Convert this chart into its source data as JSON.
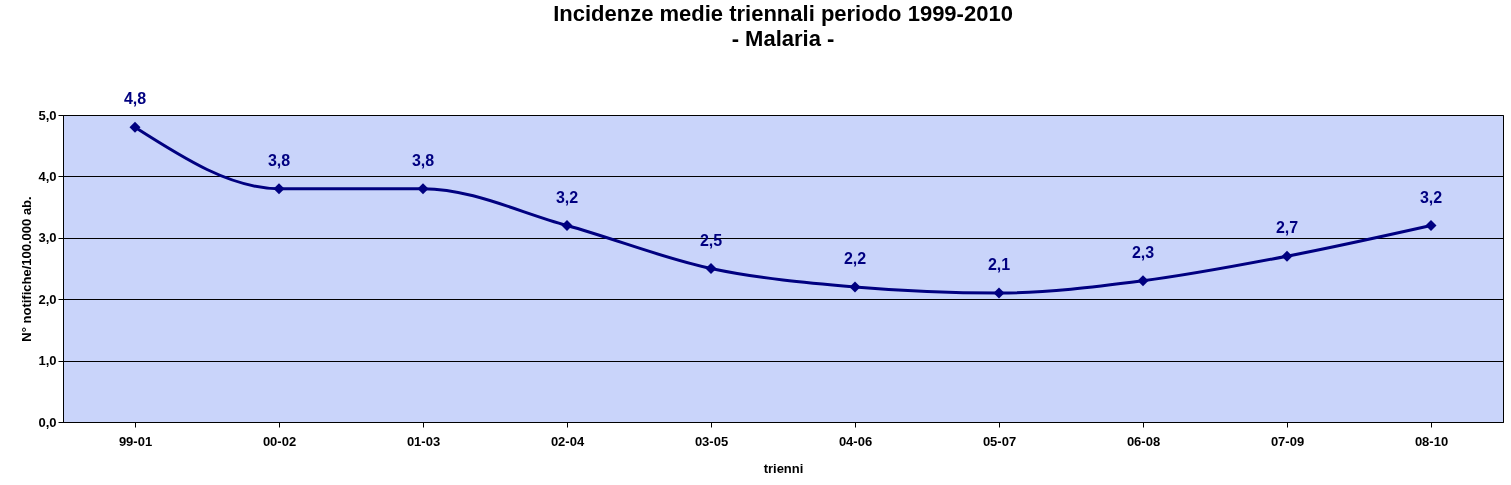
{
  "chart_data": {
    "type": "line",
    "title": "Incidenze medie triennali periodo 1999-2010",
    "subtitle": "- Malaria -",
    "xlabel": "trienni",
    "ylabel": "N° notifiche/100.000 ab.",
    "categories": [
      "99-01",
      "00-02",
      "01-03",
      "02-04",
      "03-05",
      "04-06",
      "05-07",
      "06-08",
      "07-09",
      "08-10"
    ],
    "series": [
      {
        "color": "#000080",
        "values": [
          4.8,
          3.8,
          3.8,
          3.2,
          2.5,
          2.2,
          2.1,
          2.3,
          2.7,
          3.2
        ],
        "value_labels": [
          "4,8",
          "3,8",
          "3,8",
          "3,2",
          "2,5",
          "2,2",
          "2,1",
          "2,3",
          "2,7",
          "3,2"
        ]
      }
    ],
    "ylim": [
      0,
      5
    ],
    "yticks": [
      {
        "value": 0,
        "label": "0,0"
      },
      {
        "value": 1,
        "label": "1,0"
      },
      {
        "value": 2,
        "label": "2,0"
      },
      {
        "value": 3,
        "label": "3,0"
      },
      {
        "value": 4,
        "label": "4,0"
      },
      {
        "value": 5,
        "label": "5,0"
      }
    ],
    "grid": "y",
    "marker": "diamond",
    "line_style": "solid"
  }
}
